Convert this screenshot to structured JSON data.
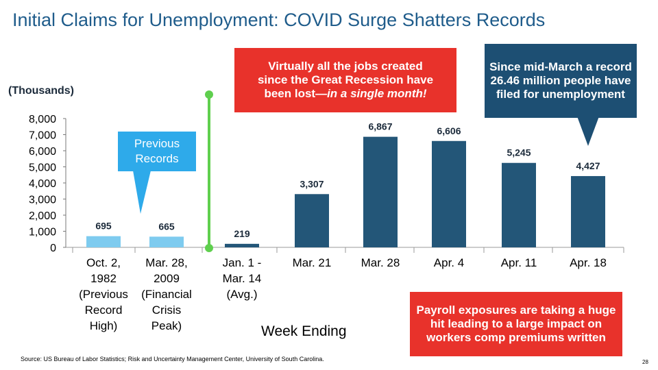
{
  "title": "Initial Claims for Unemployment: COVID Surge Shatters Records",
  "units_label": "(Thousands)",
  "callouts": {
    "jobs_lost_line1": "Virtually all the jobs created",
    "jobs_lost_line2": "since the Great Recession have",
    "jobs_lost_line3_prefix": "been lost—",
    "jobs_lost_line3_italic": "in a single month!",
    "record": "Since mid-March a record 26.46 million people have filed for unemployment",
    "previous_records_line1": "Previous",
    "previous_records_line2": "Records",
    "payroll": "Payroll exposures are taking a huge hit leading to a large impact on workers comp premiums written"
  },
  "source": "Source: US Bureau of Labor Statistics; Risk and Uncertainty Management Center, University of South Carolina.",
  "page_number": "28",
  "colors": {
    "title": "#1f5c8b",
    "light_bar": "#7ecbef",
    "dark_bar": "#235678",
    "red_callout": "#e8322b",
    "navy_callout": "#1d4f73",
    "blue_callout": "#2eaaea",
    "divider": "#5fcf4e"
  },
  "chart_data": {
    "type": "bar",
    "title": "Initial Claims for Unemployment: COVID Surge Shatters Records",
    "xlabel": "Week Ending",
    "ylabel": "(Thousands)",
    "ylim": [
      0,
      8000
    ],
    "yticks": [
      "0",
      "1,000",
      "2,000",
      "3,000",
      "4,000",
      "5,000",
      "6,000",
      "7,000",
      "8,000"
    ],
    "grid": false,
    "legend": "none",
    "categories": [
      [
        "Oct. 2,",
        "1982",
        "(Previous",
        "Record",
        "High)"
      ],
      [
        "Mar. 28,",
        "2009",
        "(Financial",
        "Crisis",
        "Peak)"
      ],
      [
        "Jan. 1 -",
        "Mar. 14",
        "(Avg.)"
      ],
      [
        "Mar. 21"
      ],
      [
        "Mar. 28"
      ],
      [
        "Apr. 4"
      ],
      [
        "Apr. 11"
      ],
      [
        "Apr. 18"
      ]
    ],
    "values": [
      695,
      665,
      219,
      3307,
      6867,
      6606,
      5245,
      4427
    ],
    "value_labels": [
      "695",
      "665",
      "219",
      "3,307",
      "6,867",
      "6,606",
      "5,245",
      "4,427"
    ],
    "bar_style": [
      "light",
      "light",
      "dark",
      "dark",
      "dark",
      "dark",
      "dark",
      "dark"
    ]
  }
}
